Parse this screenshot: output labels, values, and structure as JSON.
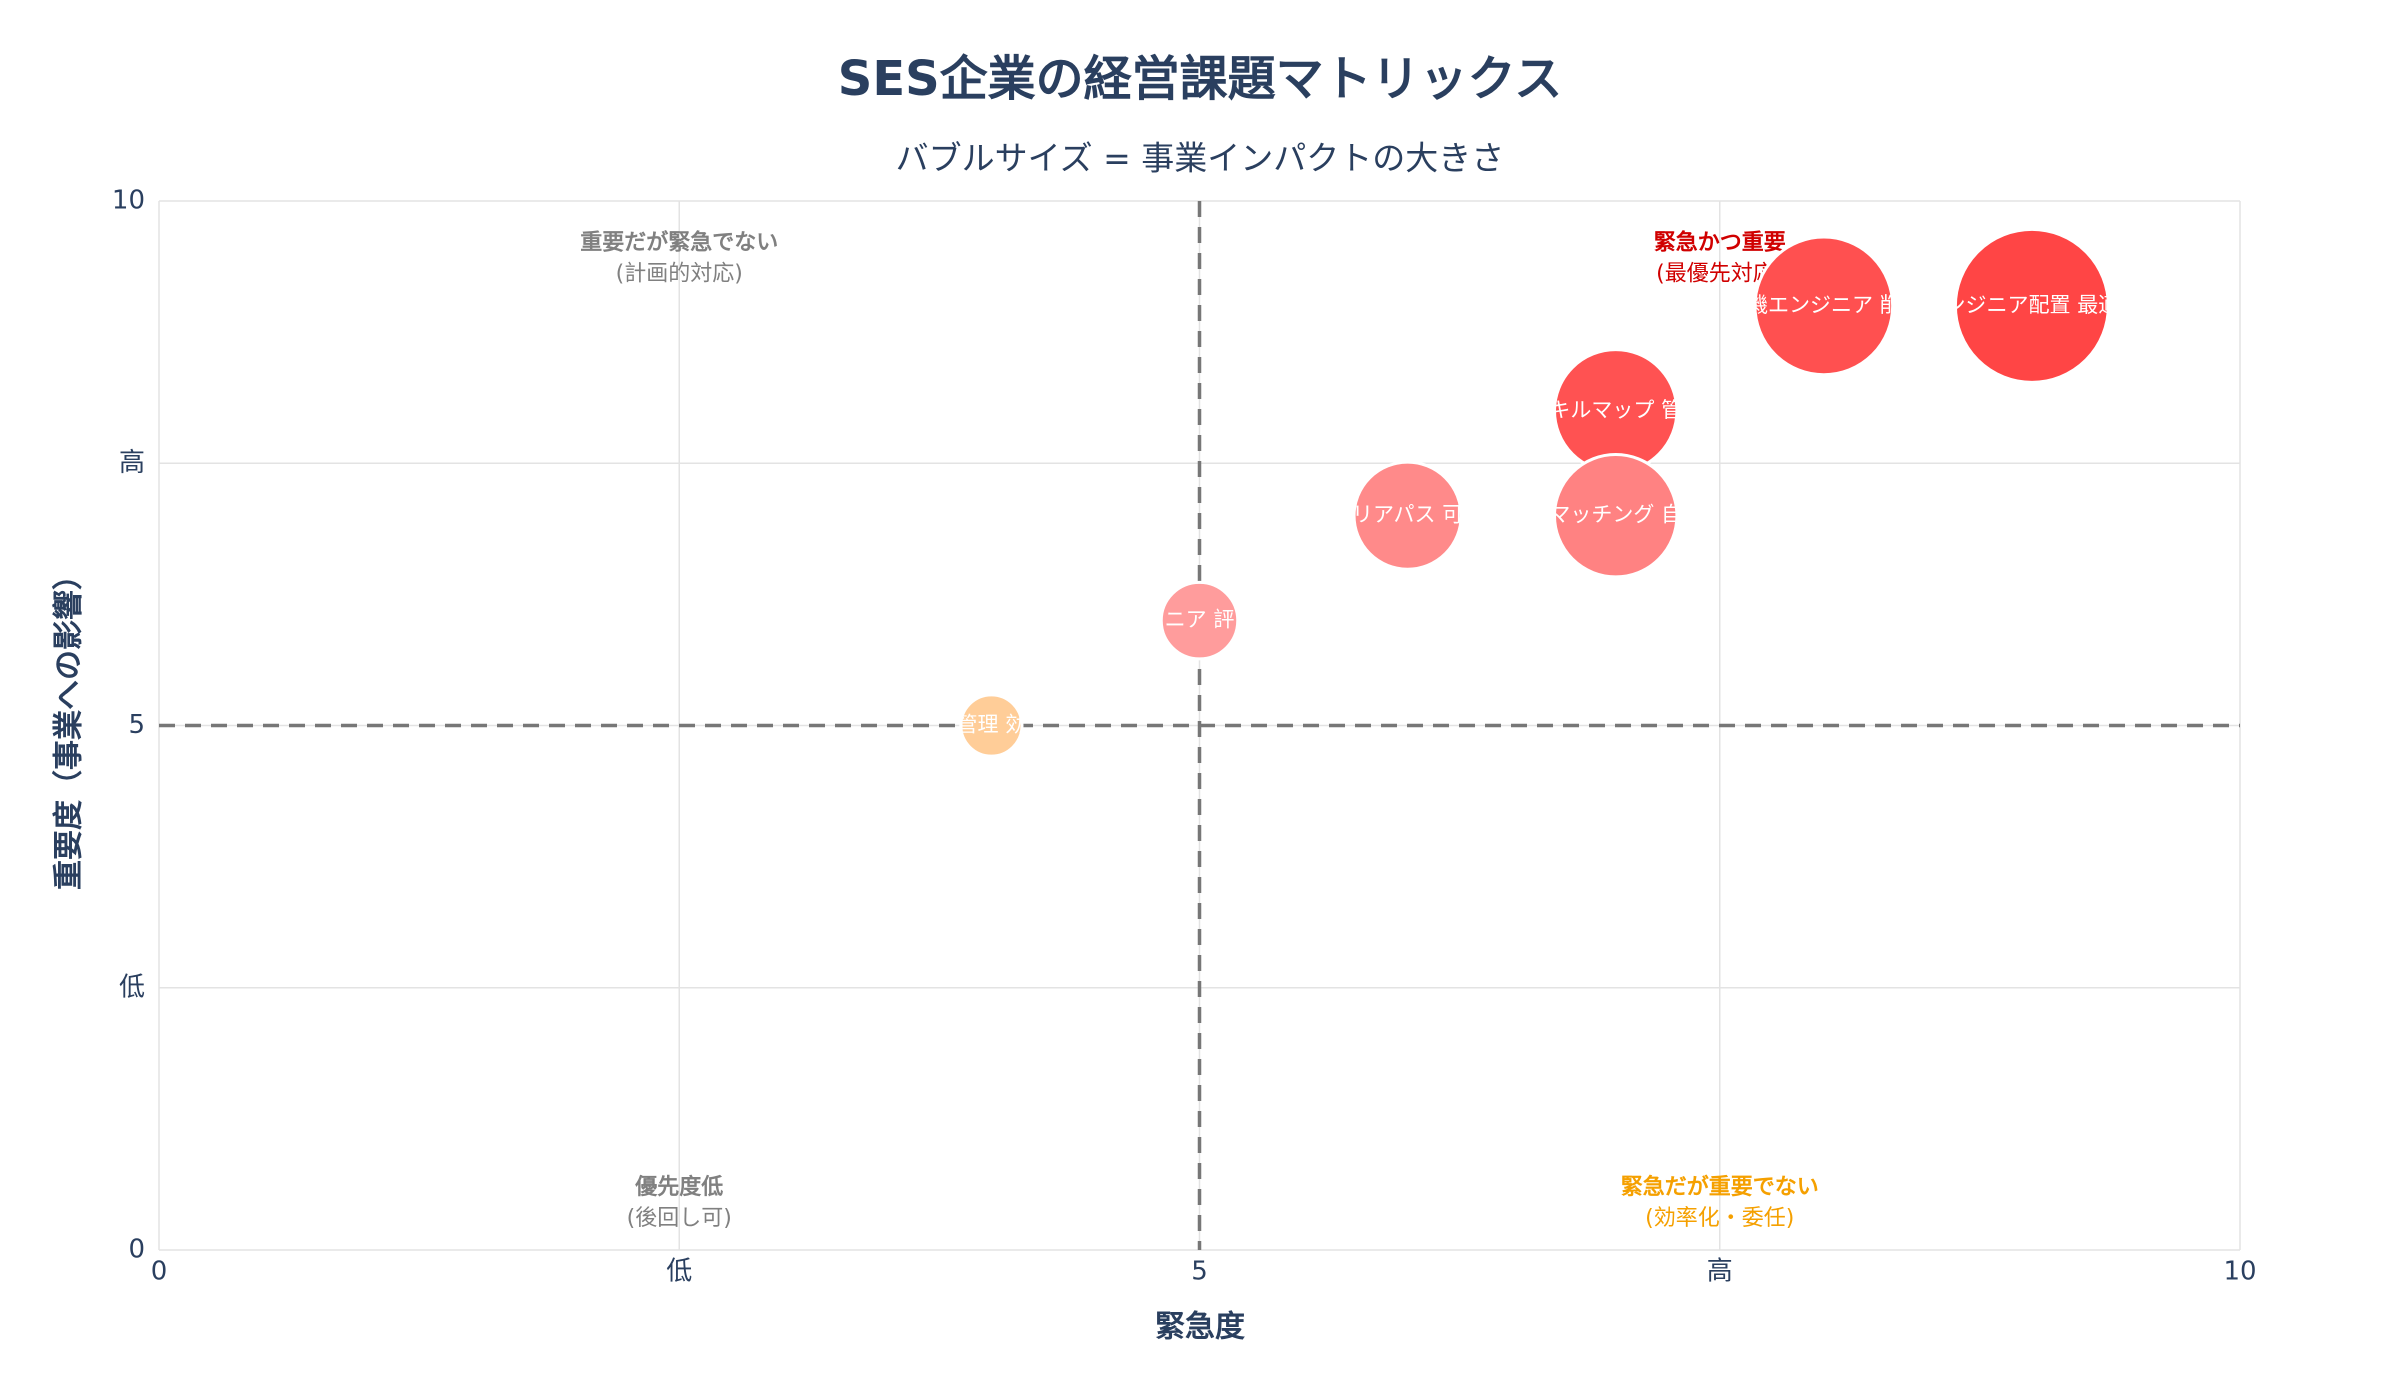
{
  "chart_data": {
    "type": "bubble",
    "title": "SES企業の経営課題マトリックス",
    "subtitle": "バブルサイズ = 事業インパクトの大きさ",
    "x_label": "緊急度",
    "y_label": "重要度（事業への影響）",
    "xlim": [
      0,
      10
    ],
    "ylim": [
      0,
      10
    ],
    "xticks": [
      0,
      {
        "value": 2.5,
        "label": "低"
      },
      5,
      {
        "value": 7.5,
        "label": "高"
      },
      10
    ],
    "yticks": [
      0,
      {
        "value": 2.5,
        "label": "低"
      },
      5,
      {
        "value": 7.5,
        "label": "高"
      },
      10
    ],
    "grid": true,
    "vline": 5,
    "hline": 5,
    "points": [
      {
        "label": "ンジニア配置 最適",
        "x": 9,
        "y": 9,
        "size": 10,
        "color": "#ff4545"
      },
      {
        "label": "機エンジニア 削",
        "x": 8,
        "y": 9,
        "size": 9,
        "color": "#ff5050"
      },
      {
        "label": "キルマップ 管",
        "x": 7,
        "y": 8,
        "size": 8,
        "color": "#ff5252"
      },
      {
        "label": "マッチング 自",
        "x": 7,
        "y": 7,
        "size": 8,
        "color": "#ff8282"
      },
      {
        "label": "リアパス 可",
        "x": 6,
        "y": 7,
        "size": 7,
        "color": "#ff8a8a"
      },
      {
        "label": "ニア 評",
        "x": 5,
        "y": 6,
        "size": 5,
        "color": "#ff9c9c"
      },
      {
        "label": "管理 効",
        "x": 4,
        "y": 5,
        "size": 4,
        "color": "#ffcd98"
      }
    ],
    "annotations": [
      {
        "title": "重要だが緊急でない",
        "text": "(計画的対応)",
        "corner": "top-left",
        "color": "#808080"
      },
      {
        "title": "緊急かつ重要",
        "text": "(最優先対応)",
        "corner": "top-right",
        "color": "#d00000"
      },
      {
        "title": "優先度低",
        "text": "(後回し可)",
        "corner": "bottom-left",
        "color": "#808080"
      },
      {
        "title": "緊急だが重要でない",
        "text": "(効率化・委任)",
        "corner": "bottom-right",
        "color": "#f5a000"
      }
    ]
  }
}
